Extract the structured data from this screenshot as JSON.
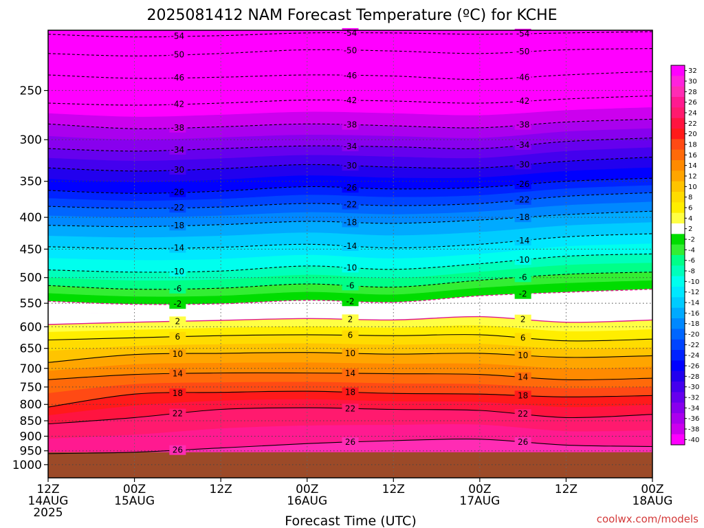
{
  "chart_data": {
    "type": "heatmap",
    "title": "2025081412 NAM Forecast Temperature (ºC) for KCHE",
    "xlabel": "Forecast Time (UTC)",
    "credit": "coolwx.com/models",
    "x_ticks": [
      {
        "hours": 0,
        "lines": [
          "12Z",
          "14AUG",
          "2025"
        ]
      },
      {
        "hours": 12,
        "lines": [
          "00Z",
          "15AUG"
        ]
      },
      {
        "hours": 24,
        "lines": [
          "12Z"
        ]
      },
      {
        "hours": 36,
        "lines": [
          "00Z",
          "16AUG"
        ]
      },
      {
        "hours": 48,
        "lines": [
          "12Z"
        ]
      },
      {
        "hours": 60,
        "lines": [
          "00Z",
          "17AUG"
        ]
      },
      {
        "hours": 72,
        "lines": [
          "12Z"
        ]
      },
      {
        "hours": 84,
        "lines": [
          "00Z",
          "18AUG"
        ]
      }
    ],
    "xlim": [
      0,
      84
    ],
    "y_scale": "log",
    "ylim": [
      1050,
      200
    ],
    "y_ticks": [
      250,
      300,
      350,
      400,
      450,
      500,
      550,
      600,
      650,
      700,
      750,
      800,
      850,
      900,
      950,
      1000
    ],
    "ground_level_hpa": 955,
    "colorbar": {
      "levels": [
        32,
        30,
        28,
        26,
        24,
        22,
        20,
        18,
        16,
        14,
        12,
        10,
        8,
        6,
        4,
        2,
        -2,
        -4,
        -6,
        -8,
        -10,
        -12,
        -14,
        -16,
        -18,
        -20,
        -22,
        -24,
        -26,
        -28,
        -30,
        -32,
        -34,
        -36,
        -38,
        -40
      ],
      "colors": [
        "#ff00ff",
        "#ff22dd",
        "#ff2cb4",
        "#ff1a90",
        "#ff1a6e",
        "#ff1440",
        "#ff1a1a",
        "#ff4a14",
        "#ff6a0a",
        "#ff8a00",
        "#ffa500",
        "#ffc400",
        "#ffdc00",
        "#ffee00",
        "#ffff44",
        "#ffffff",
        "#00dd00",
        "#33ee33",
        "#00ff88",
        "#00ffbb",
        "#00ffee",
        "#00e8ff",
        "#00ccff",
        "#00aaff",
        "#0088ff",
        "#0066ff",
        "#0044ff",
        "#0022ff",
        "#0000ff",
        "#2200ee",
        "#4400ee",
        "#6600ee",
        "#8800ee",
        "#aa00ee",
        "#cc00ee",
        "#ff00ff"
      ]
    },
    "isotherms": [
      {
        "label": "-54",
        "pressure": [
          203,
          205,
          204,
          202,
          202,
          203,
          202,
          201
        ]
      },
      {
        "label": "-50",
        "pressure": [
          218,
          220,
          218,
          215,
          216,
          218,
          215,
          214
        ]
      },
      {
        "label": "-46",
        "pressure": [
          236,
          239,
          238,
          236,
          237,
          240,
          236,
          233
        ]
      },
      {
        "label": "-42",
        "pressure": [
          262,
          264,
          262,
          259,
          260,
          262,
          258,
          255
        ]
      },
      {
        "label": "-38",
        "pressure": [
          283,
          288,
          286,
          283,
          285,
          287,
          281,
          278
        ]
      },
      {
        "label": "-34",
        "pressure": [
          310,
          313,
          310,
          307,
          308,
          310,
          302,
          298
        ]
      },
      {
        "label": "-30",
        "pressure": [
          333,
          337,
          334,
          329,
          332,
          333,
          325,
          320
        ]
      },
      {
        "label": "-26",
        "pressure": [
          362,
          366,
          363,
          357,
          360,
          358,
          350,
          346
        ]
      },
      {
        "label": "-22",
        "pressure": [
          384,
          387,
          385,
          380,
          383,
          380,
          370,
          365
        ]
      },
      {
        "label": "-18",
        "pressure": [
          412,
          414,
          411,
          406,
          409,
          404,
          396,
          391
        ]
      },
      {
        "label": "-14",
        "pressure": [
          446,
          449,
          447,
          442,
          448,
          442,
          430,
          425
        ]
      },
      {
        "label": "-10",
        "pressure": [
          486,
          490,
          488,
          479,
          485,
          475,
          462,
          458
        ]
      },
      {
        "label": "-6",
        "pressure": [
          515,
          522,
          520,
          512,
          518,
          505,
          494,
          490
        ]
      },
      {
        "label": "-2",
        "pressure": [
          546,
          552,
          551,
          544,
          548,
          535,
          528,
          522
        ]
      },
      {
        "label": "2",
        "pressure": [
          595,
          590,
          586,
          582,
          585,
          578,
          590,
          585
        ]
      },
      {
        "label": "6",
        "pressure": [
          630,
          625,
          620,
          618,
          620,
          618,
          632,
          628
        ]
      },
      {
        "label": "10",
        "pressure": [
          685,
          665,
          662,
          660,
          664,
          662,
          672,
          668
        ]
      },
      {
        "label": "14",
        "pressure": [
          730,
          716,
          712,
          712,
          714,
          716,
          730,
          726
        ]
      },
      {
        "label": "18",
        "pressure": [
          808,
          770,
          765,
          762,
          768,
          770,
          778,
          774
        ]
      },
      {
        "label": "22",
        "pressure": [
          860,
          840,
          815,
          810,
          815,
          818,
          840,
          830
        ]
      },
      {
        "label": "26",
        "pressure": [
          960,
          955,
          940,
          925,
          915,
          910,
          930,
          935
        ]
      }
    ]
  }
}
